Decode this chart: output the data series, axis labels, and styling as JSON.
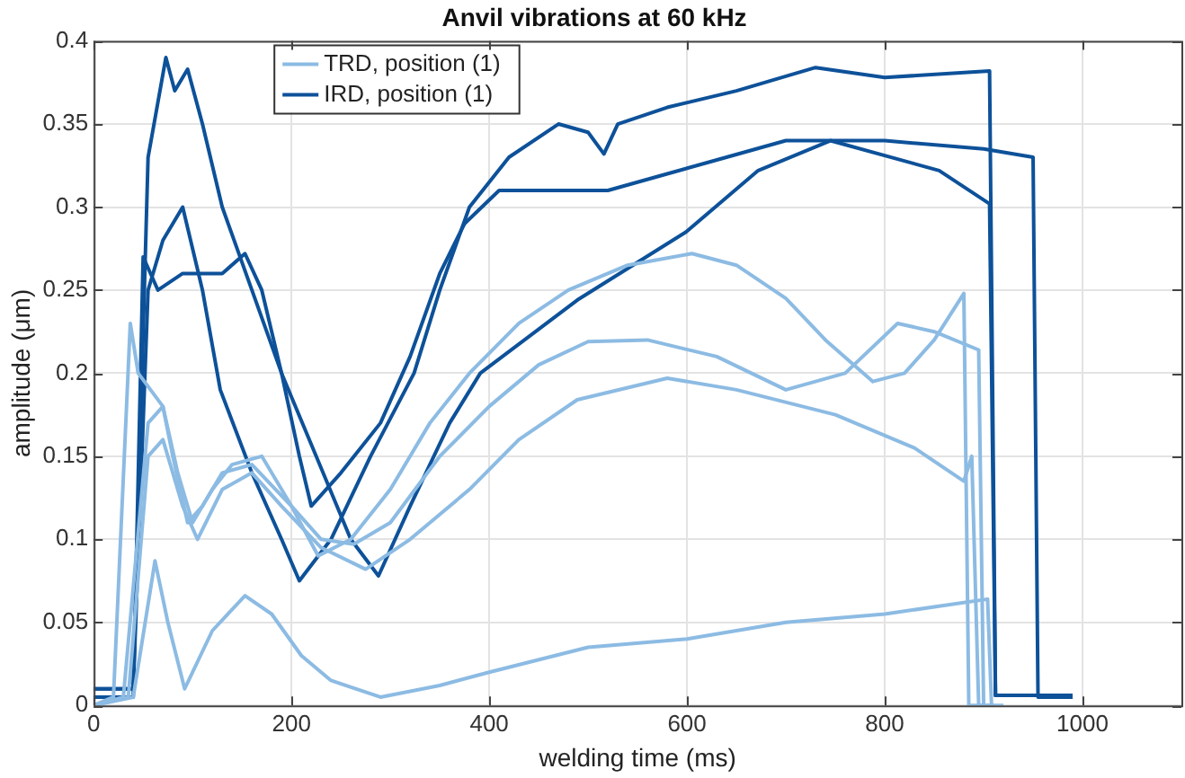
{
  "chart_data": {
    "type": "line",
    "title": "Anvil vibrations at 60 kHz",
    "xlabel": "welding time (ms)",
    "ylabel": "amplitude (μm)",
    "xlim": [
      0,
      1100
    ],
    "xticks": [
      0,
      200,
      400,
      600,
      800,
      1000
    ],
    "ylim": [
      0,
      0.4
    ],
    "yticks": [
      0,
      0.05,
      0.1,
      0.15,
      0.2,
      0.25,
      0.3,
      0.35,
      0.4
    ],
    "grid": true,
    "legend": "top left",
    "marker": "none",
    "line_style": "solid",
    "series": [
      {
        "name": "TRD, position (1)",
        "color": "#8cbbe3",
        "x": [
          0,
          20,
          37,
          45,
          70,
          85,
          100,
          120,
          140,
          170,
          200,
          227,
          260,
          300,
          340,
          380,
          430,
          480,
          540,
          605,
          650,
          700,
          740,
          788,
          820,
          850,
          880,
          885,
          900
        ],
        "values": [
          0,
          0.005,
          0.23,
          0.2,
          0.18,
          0.14,
          0.11,
          0.13,
          0.145,
          0.15,
          0.12,
          0.09,
          0.1,
          0.13,
          0.17,
          0.2,
          0.23,
          0.25,
          0.265,
          0.272,
          0.265,
          0.245,
          0.22,
          0.195,
          0.2,
          0.22,
          0.248,
          0,
          0
        ]
      },
      {
        "color": "#8cbbe3",
        "x": [
          0,
          30,
          55,
          70,
          80,
          95,
          110,
          130,
          160,
          200,
          230,
          263,
          300,
          350,
          400,
          450,
          500,
          560,
          630,
          700,
          760,
          813,
          850,
          895,
          900,
          910
        ],
        "values": [
          0,
          0.005,
          0.17,
          0.18,
          0.15,
          0.11,
          0.12,
          0.14,
          0.145,
          0.12,
          0.1,
          0.097,
          0.11,
          0.15,
          0.18,
          0.205,
          0.219,
          0.22,
          0.21,
          0.19,
          0.2,
          0.23,
          0.225,
          0.214,
          0,
          0
        ]
      },
      {
        "color": "#8cbbe3",
        "x": [
          0,
          35,
          55,
          70,
          90,
          105,
          130,
          160,
          190,
          230,
          275,
          320,
          380,
          430,
          489,
          580,
          650,
          750,
          830,
          880,
          888,
          895,
          910
        ],
        "values": [
          0,
          0.005,
          0.15,
          0.16,
          0.12,
          0.1,
          0.13,
          0.14,
          0.12,
          0.095,
          0.082,
          0.1,
          0.13,
          0.16,
          0.184,
          0.197,
          0.19,
          0.175,
          0.155,
          0.135,
          0.15,
          0,
          0
        ]
      },
      {
        "color": "#8cbbe3",
        "x": [
          0,
          40,
          62,
          75,
          92,
          120,
          153,
          180,
          210,
          240,
          290,
          350,
          400,
          500,
          600,
          700,
          800,
          904,
          908,
          920
        ],
        "values": [
          0,
          0.005,
          0.087,
          0.05,
          0.01,
          0.045,
          0.066,
          0.055,
          0.03,
          0.015,
          0.005,
          0.012,
          0.02,
          0.035,
          0.04,
          0.05,
          0.055,
          0.064,
          0,
          0
        ]
      },
      {
        "name": "IRD, position (1)",
        "color": "#0d5199",
        "x": [
          0,
          40,
          55,
          70,
          90,
          110,
          128,
          160,
          190,
          208,
          240,
          280,
          324,
          350,
          380,
          420,
          470,
          500,
          516,
          530,
          580,
          650,
          730,
          800,
          906,
          912,
          990
        ],
        "values": [
          0.01,
          0.01,
          0.25,
          0.28,
          0.3,
          0.25,
          0.19,
          0.14,
          0.1,
          0.075,
          0.1,
          0.15,
          0.2,
          0.25,
          0.3,
          0.33,
          0.35,
          0.345,
          0.332,
          0.35,
          0.36,
          0.37,
          0.384,
          0.378,
          0.382,
          0.006,
          0.006
        ]
      },
      {
        "color": "#0d5199",
        "x": [
          0,
          40,
          50,
          65,
          90,
          130,
          153,
          170,
          190,
          208,
          220,
          250,
          290,
          320,
          350,
          375,
          410,
          470,
          520,
          580,
          640,
          700,
          800,
          900,
          950,
          955,
          990
        ],
        "values": [
          0.005,
          0.005,
          0.27,
          0.25,
          0.26,
          0.26,
          0.272,
          0.25,
          0.2,
          0.15,
          0.12,
          0.14,
          0.17,
          0.21,
          0.26,
          0.29,
          0.31,
          0.31,
          0.31,
          0.32,
          0.33,
          0.34,
          0.34,
          0.335,
          0.33,
          0.005,
          0.005
        ]
      },
      {
        "color": "#0d5199",
        "x": [
          0,
          40,
          55,
          73,
          82,
          95,
          110,
          130,
          160,
          190,
          225,
          260,
          288,
          320,
          360,
          391,
          489,
          599,
          672,
          745,
          855,
          906,
          912,
          990
        ],
        "values": [
          0.01,
          0.01,
          0.33,
          0.39,
          0.37,
          0.383,
          0.35,
          0.3,
          0.25,
          0.2,
          0.15,
          0.1,
          0.078,
          0.12,
          0.17,
          0.2,
          0.244,
          0.285,
          0.322,
          0.34,
          0.322,
          0.302,
          0.006,
          0.006
        ]
      }
    ]
  }
}
